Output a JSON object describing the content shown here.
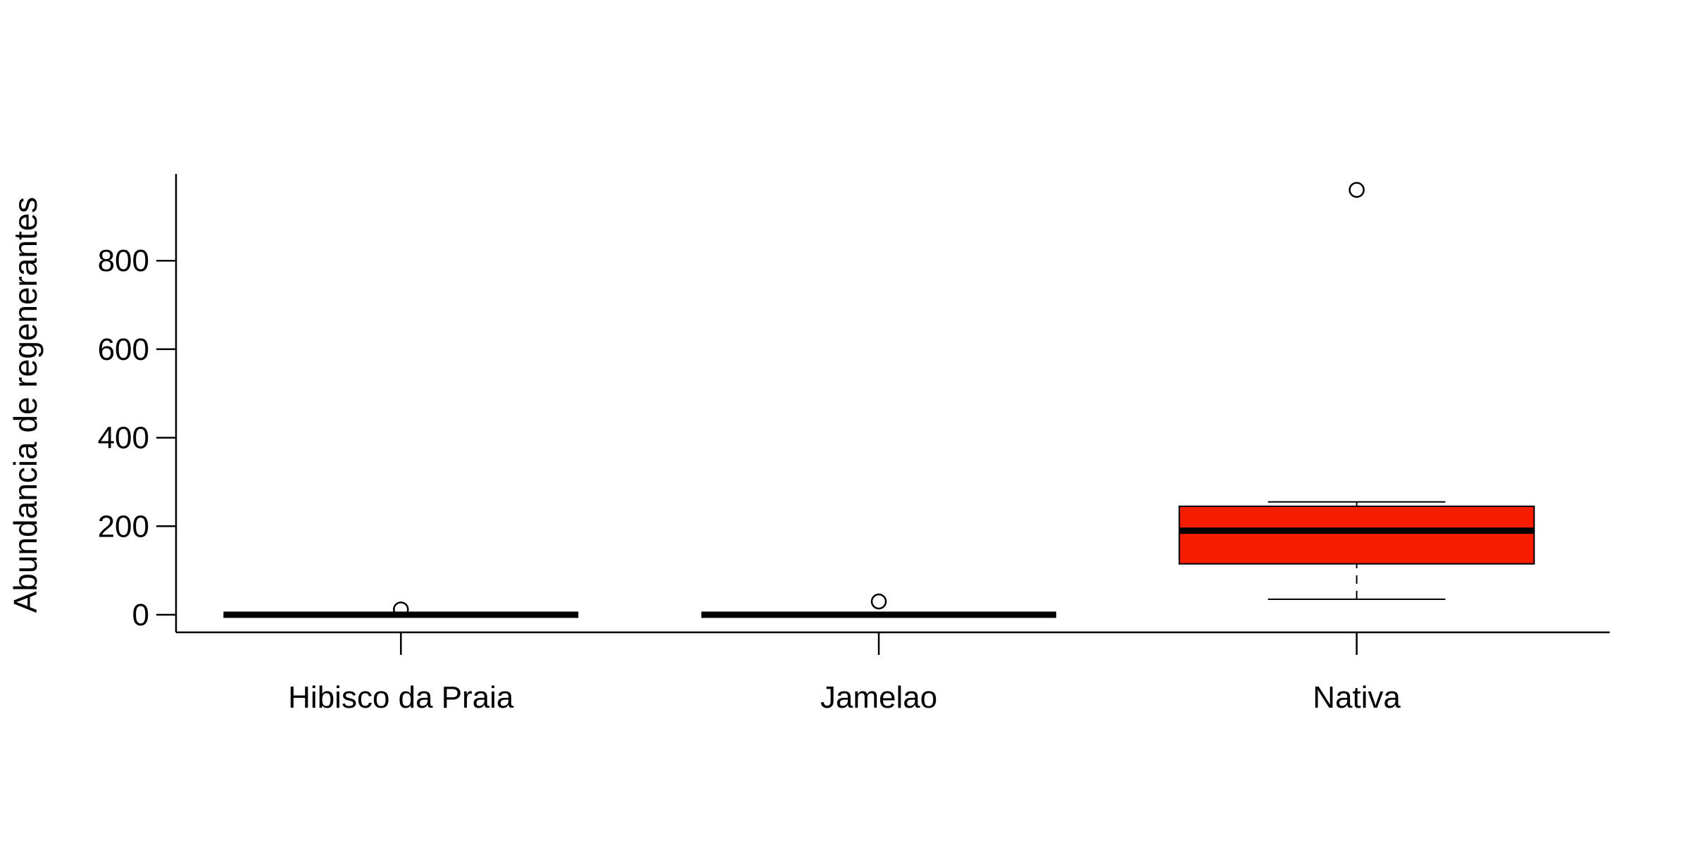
{
  "chart_data": {
    "type": "boxplot",
    "title": "",
    "xlabel": "",
    "ylabel": "Abundancia de regenerantes",
    "ylim": [
      -35,
      1000
    ],
    "yticks": [
      0,
      200,
      400,
      600,
      800
    ],
    "ytick_labels": [
      "0",
      "200",
      "400",
      "600",
      "800"
    ],
    "grid": false,
    "legend": "none",
    "categories": [
      "Hibisco da Praia",
      "Jamelao",
      "Nativa"
    ],
    "boxes": [
      {
        "category": "Hibisco da Praia",
        "whisker_low": 0,
        "q1": 0,
        "median": 0,
        "q3": 0,
        "whisker_high": 0,
        "outliers": [
          12
        ],
        "color": "#ffffff"
      },
      {
        "category": "Jamelao",
        "whisker_low": 0,
        "q1": 0,
        "median": 0,
        "q3": 0,
        "whisker_high": 0,
        "outliers": [
          30
        ],
        "color": "#ffffff"
      },
      {
        "category": "Nativa",
        "whisker_low": 35,
        "q1": 115,
        "median": 190,
        "q3": 245,
        "whisker_high": 255,
        "outliers": [
          960
        ],
        "color": "#f51c00"
      }
    ]
  }
}
